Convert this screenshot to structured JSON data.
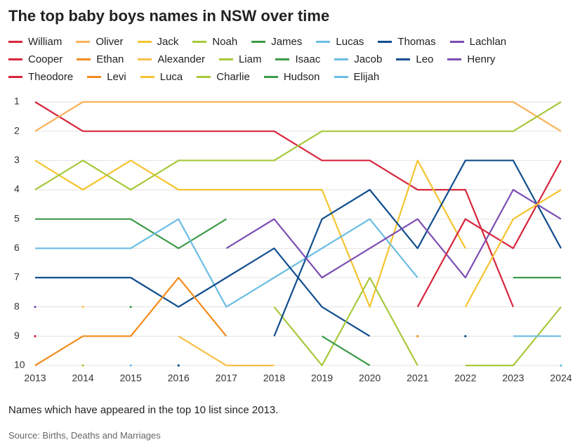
{
  "chart_data": {
    "type": "bump",
    "title": "The top baby boys names in NSW over time",
    "note": "Names which have appeared in the top 10 list since 2013.",
    "source": "Source: Births, Deaths and Marriages",
    "x": [
      2013,
      2014,
      2015,
      2016,
      2017,
      2018,
      2019,
      2020,
      2021,
      2022,
      2023,
      2024
    ],
    "xlim": [
      2013,
      2024
    ],
    "xticks": [
      2013,
      2014,
      2015,
      2016,
      2017,
      2018,
      2019,
      2020,
      2021,
      2022,
      2023,
      2024
    ],
    "ylim": [
      10,
      1
    ],
    "yticks": [
      1,
      2,
      3,
      4,
      5,
      6,
      7,
      8,
      9,
      10
    ],
    "grid": true,
    "series": [
      {
        "name": "William",
        "color": "#d7263d",
        "values": [
          1,
          2,
          2,
          2,
          2,
          2,
          3,
          3,
          4,
          4,
          8,
          null
        ]
      },
      {
        "name": "Oliver",
        "color": "#f9b25a",
        "values": [
          2,
          1,
          1,
          1,
          1,
          1,
          1,
          1,
          1,
          1,
          1,
          2
        ]
      },
      {
        "name": "Jack",
        "color": "#f4c430",
        "values": [
          3,
          4,
          3,
          4,
          4,
          4,
          4,
          8,
          3,
          6,
          null,
          null
        ]
      },
      {
        "name": "Noah",
        "color": "#a6c93a",
        "values": [
          4,
          3,
          4,
          3,
          3,
          3,
          2,
          2,
          2,
          2,
          2,
          1
        ]
      },
      {
        "name": "James",
        "color": "#3d9b48",
        "values": [
          5,
          5,
          5,
          6,
          5,
          null,
          null,
          null,
          null,
          null,
          null,
          null
        ]
      },
      {
        "name": "Lucas",
        "color": "#6bbde3",
        "values": [
          6,
          6,
          6,
          5,
          8,
          7,
          6,
          5,
          7,
          null,
          null,
          null
        ]
      },
      {
        "name": "Thomas",
        "color": "#114e8e",
        "values": [
          7,
          7,
          7,
          8,
          7,
          6,
          8,
          9,
          null,
          9,
          null,
          null
        ]
      },
      {
        "name": "Lachlan",
        "color": "#7c4db3",
        "values": [
          8,
          null,
          null,
          null,
          null,
          null,
          null,
          null,
          null,
          null,
          null,
          null
        ]
      },
      {
        "name": "Cooper",
        "color": "#d7263d",
        "values": [
          9,
          null,
          null,
          null,
          null,
          null,
          null,
          null,
          null,
          null,
          null,
          null
        ]
      },
      {
        "name": "Ethan",
        "color": "#f28c1c",
        "values": [
          10,
          9,
          9,
          7,
          9,
          null,
          null,
          null,
          null,
          null,
          null,
          null
        ]
      },
      {
        "name": "Alexander",
        "color": "#f9c04a",
        "values": [
          null,
          8,
          null,
          9,
          10,
          10,
          null,
          null,
          null,
          null,
          null,
          null
        ]
      },
      {
        "name": "Liam",
        "color": "#a6c93a",
        "values": [
          null,
          10,
          null,
          null,
          null,
          8,
          10,
          7,
          10,
          null,
          null,
          null
        ]
      },
      {
        "name": "Isaac",
        "color": "#3d9b48",
        "values": [
          null,
          null,
          8,
          null,
          null,
          null,
          9,
          10,
          null,
          null,
          null,
          null
        ]
      },
      {
        "name": "Jacob",
        "color": "#6bbde3",
        "values": [
          null,
          null,
          10,
          null,
          null,
          null,
          null,
          null,
          null,
          null,
          null,
          10
        ]
      },
      {
        "name": "Leo",
        "color": "#114e8e",
        "values": [
          null,
          null,
          null,
          10,
          null,
          9,
          5,
          4,
          6,
          3,
          3,
          6
        ]
      },
      {
        "name": "Henry",
        "color": "#7c4db3",
        "values": [
          null,
          null,
          null,
          null,
          6,
          5,
          7,
          6,
          5,
          7,
          4,
          5
        ]
      },
      {
        "name": "Theodore",
        "color": "#d7263d",
        "values": [
          null,
          null,
          null,
          null,
          null,
          null,
          null,
          null,
          8,
          5,
          6,
          3
        ]
      },
      {
        "name": "Levi",
        "color": "#f28c1c",
        "values": [
          null,
          null,
          null,
          null,
          null,
          null,
          null,
          null,
          9,
          null,
          null,
          null
        ]
      },
      {
        "name": "Luca",
        "color": "#f4c430",
        "values": [
          null,
          null,
          null,
          null,
          null,
          null,
          null,
          null,
          null,
          8,
          5,
          4
        ]
      },
      {
        "name": "Charlie",
        "color": "#a6c93a",
        "values": [
          null,
          null,
          null,
          null,
          null,
          null,
          null,
          null,
          null,
          10,
          10,
          8
        ]
      },
      {
        "name": "Hudson",
        "color": "#3d9b48",
        "values": [
          null,
          null,
          null,
          null,
          null,
          null,
          null,
          null,
          null,
          null,
          7,
          7
        ]
      },
      {
        "name": "Elijah",
        "color": "#6bbde3",
        "values": [
          null,
          null,
          null,
          null,
          null,
          null,
          null,
          null,
          null,
          null,
          9,
          9
        ]
      }
    ]
  }
}
